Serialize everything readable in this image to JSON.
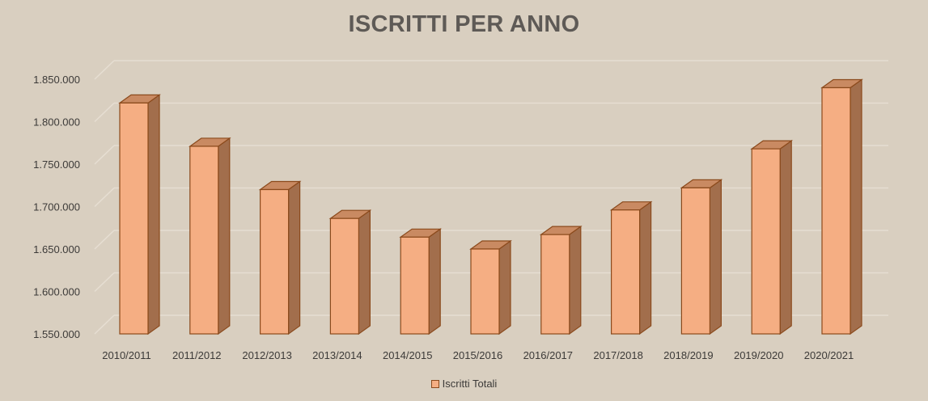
{
  "chart_data": {
    "type": "bar",
    "title": "ISCRITTI PER ANNO",
    "categories": [
      "2010/2011",
      "2011/2012",
      "2012/2013",
      "2013/2014",
      "2014/2015",
      "2015/2016",
      "2016/2017",
      "2017/2018",
      "2018/2019",
      "2019/2020",
      "2020/2021"
    ],
    "series": [
      {
        "name": "Iscritti Totali",
        "values": [
          1822000,
          1771000,
          1720000,
          1686000,
          1664000,
          1650000,
          1667000,
          1696000,
          1722000,
          1768000,
          1840000
        ]
      }
    ],
    "ytick_labels": [
      "1.550.000",
      "1.600.000",
      "1.650.000",
      "1.700.000",
      "1.750.000",
      "1.800.000",
      "1.850.000"
    ],
    "ylim": [
      1550000,
      1850000
    ],
    "grid": true,
    "legend_position": "bottom",
    "colors": {
      "background": "#d9cfc0",
      "bar_front": "#f5ae83",
      "bar_top": "#c98a62",
      "bar_side": "#a26e4c",
      "bar_edge": "#8b4a1c",
      "grid": "#e6ded2"
    }
  }
}
